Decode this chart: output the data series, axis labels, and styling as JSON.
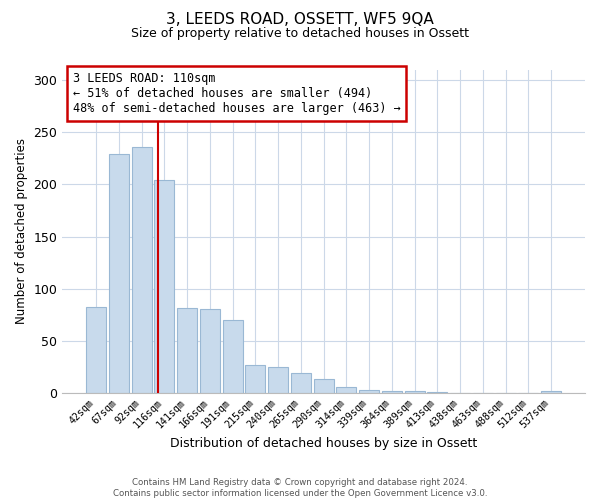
{
  "title": "3, LEEDS ROAD, OSSETT, WF5 9QA",
  "subtitle": "Size of property relative to detached houses in Ossett",
  "xlabel": "Distribution of detached houses by size in Ossett",
  "ylabel": "Number of detached properties",
  "bar_labels": [
    "42sqm",
    "67sqm",
    "92sqm",
    "116sqm",
    "141sqm",
    "166sqm",
    "191sqm",
    "215sqm",
    "240sqm",
    "265sqm",
    "290sqm",
    "314sqm",
    "339sqm",
    "364sqm",
    "389sqm",
    "413sqm",
    "438sqm",
    "463sqm",
    "488sqm",
    "512sqm",
    "537sqm"
  ],
  "bar_values": [
    82,
    229,
    236,
    204,
    81,
    80,
    70,
    27,
    25,
    19,
    13,
    5,
    3,
    2,
    2,
    1,
    0,
    0,
    0,
    0,
    2
  ],
  "bar_color": "#c8daec",
  "bar_edge_color": "#9ab8d4",
  "vline_x": 2.72,
  "vline_color": "#cc0000",
  "annotation_text": "3 LEEDS ROAD: 110sqm\n← 51% of detached houses are smaller (494)\n48% of semi-detached houses are larger (463) →",
  "annotation_box_color": "white",
  "annotation_box_edge_color": "#cc0000",
  "ylim": [
    0,
    310
  ],
  "yticks": [
    0,
    50,
    100,
    150,
    200,
    250,
    300
  ],
  "footer_line1": "Contains HM Land Registry data © Crown copyright and database right 2024.",
  "footer_line2": "Contains public sector information licensed under the Open Government Licence v3.0.",
  "bg_color": "white",
  "grid_color": "#ccd8e8"
}
